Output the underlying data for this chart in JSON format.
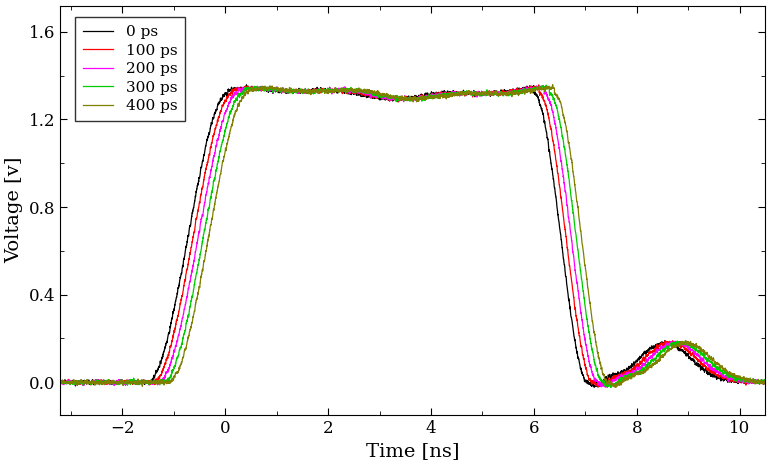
{
  "title": "",
  "xlabel": "Time [ns]",
  "ylabel": "Voltage [v]",
  "xlim": [
    -3.2,
    10.5
  ],
  "ylim": [
    -0.15,
    1.72
  ],
  "xticks": [
    -2,
    0,
    2,
    4,
    6,
    8,
    10
  ],
  "yticks": [
    0.0,
    0.4,
    0.8,
    1.2,
    1.6
  ],
  "legend_labels": [
    "0 ps",
    "100 ps",
    "200 ps",
    "300 ps",
    "400 ps"
  ],
  "colors": [
    "#000000",
    "#ff0000",
    "#ff00ff",
    "#00cc00",
    "#808000"
  ],
  "delays_ns": [
    0.0,
    0.1,
    0.2,
    0.3,
    0.4
  ],
  "pulse_amplitude": 1.32,
  "background_color": "white",
  "figsize": [
    7.71,
    4.66
  ],
  "dpi": 100
}
